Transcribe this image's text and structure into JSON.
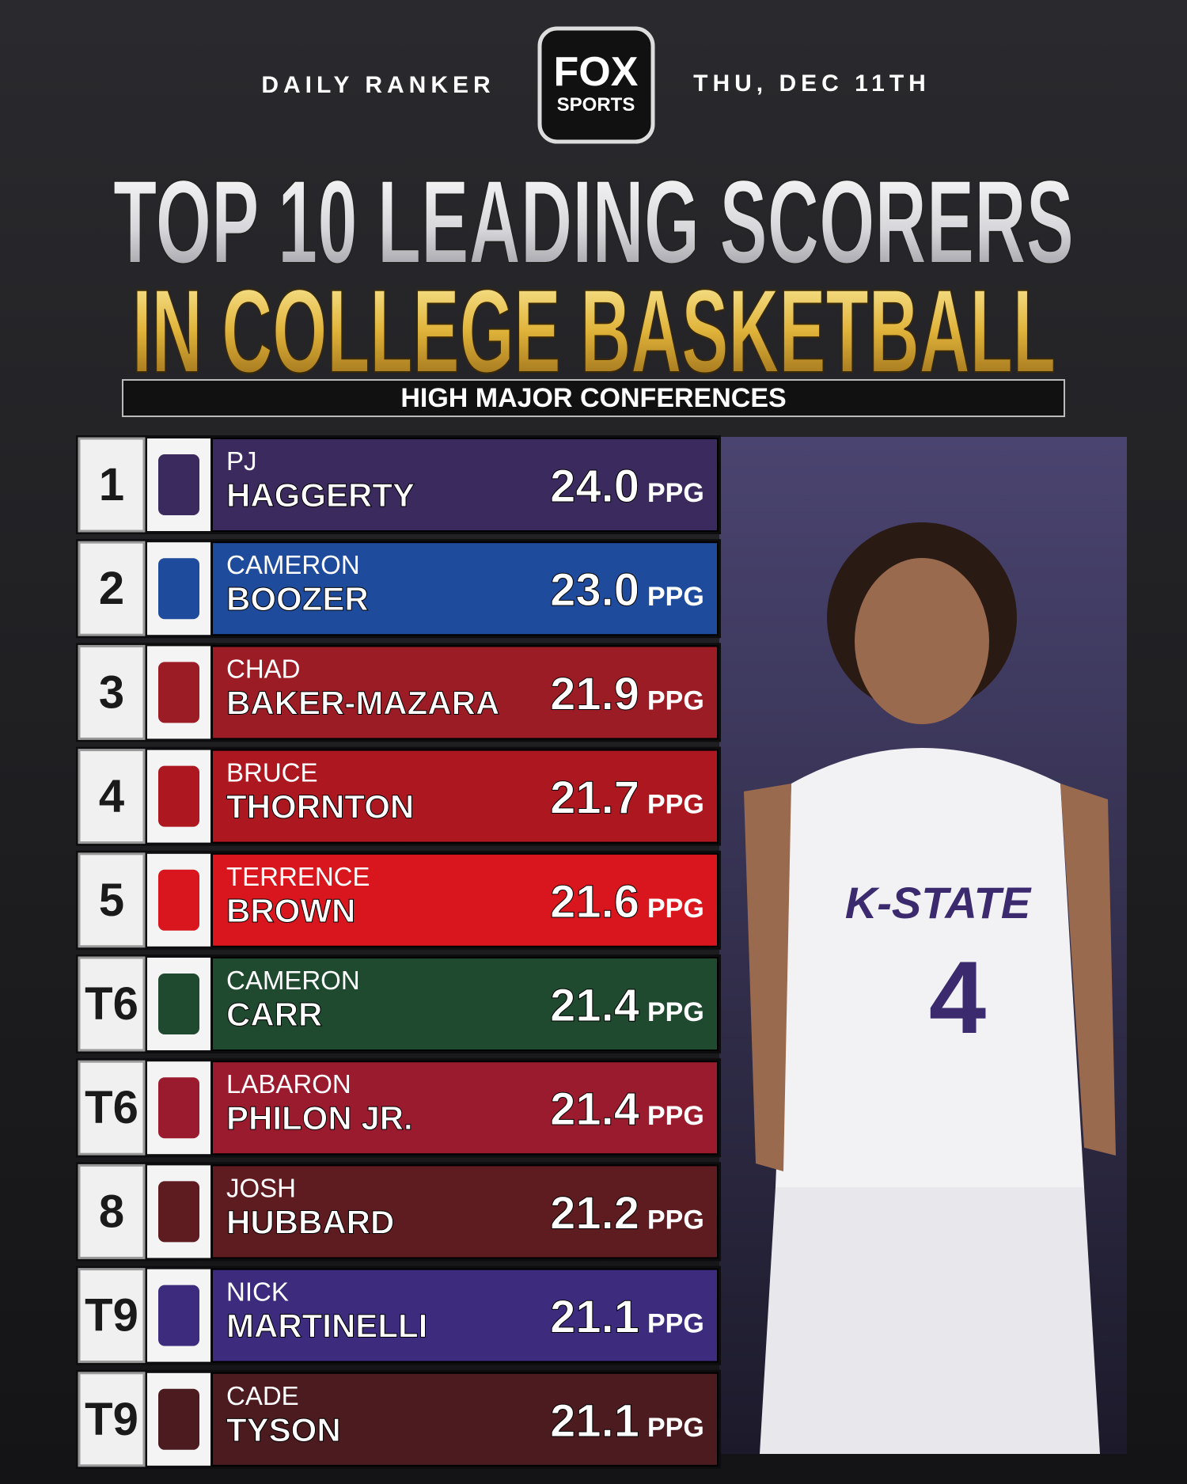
{
  "header": {
    "left": "DAILY RANKER",
    "logo_top": "FOX",
    "logo_bottom": "SPORTS",
    "right": "THU, DEC 11TH",
    "title_line1": "TOP 10 LEADING SCORERS",
    "title_line2": "IN COLLEGE BASKETBALL",
    "subtitle": "HIGH MAJOR CONFERENCES"
  },
  "unit": "PPG",
  "rows": [
    {
      "rank": "1",
      "first": "PJ",
      "last": "HAGGERTY",
      "ppg": "24.0",
      "color": "#3b2a5e"
    },
    {
      "rank": "2",
      "first": "CAMERON",
      "last": "BOOZER",
      "ppg": "23.0",
      "color": "#1f4b9c"
    },
    {
      "rank": "3",
      "first": "CHAD",
      "last": "BAKER-MAZARA",
      "ppg": "21.9",
      "color": "#9c1c26"
    },
    {
      "rank": "4",
      "first": "BRUCE",
      "last": "THORNTON",
      "ppg": "21.7",
      "color": "#ad1720"
    },
    {
      "rank": "5",
      "first": "TERRENCE",
      "last": "BROWN",
      "ppg": "21.6",
      "color": "#d9161d"
    },
    {
      "rank": "T6",
      "first": "CAMERON",
      "last": "CARR",
      "ppg": "21.4",
      "color": "#1f4a30"
    },
    {
      "rank": "T6",
      "first": "LABARON",
      "last": "PHILON JR.",
      "ppg": "21.4",
      "color": "#9b1b2e"
    },
    {
      "rank": "8",
      "first": "JOSH",
      "last": "HUBBARD",
      "ppg": "21.2",
      "color": "#5e1b20"
    },
    {
      "rank": "T9",
      "first": "NICK",
      "last": "MARTINELLI",
      "ppg": "21.1",
      "color": "#3d2c7e"
    },
    {
      "rank": "T9",
      "first": "CADE",
      "last": "TYSON",
      "ppg": "21.1",
      "color": "#4b1b20"
    }
  ],
  "photo": {
    "jersey": "K-STATE",
    "number": "4"
  }
}
